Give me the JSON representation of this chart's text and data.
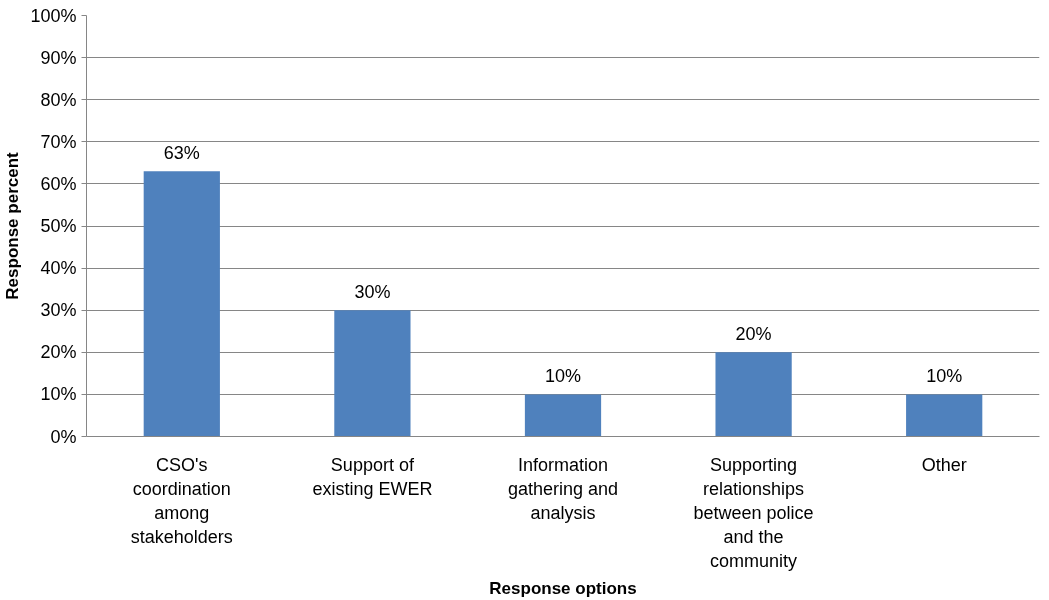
{
  "chart_data": {
    "type": "bar",
    "xlabel": "Response options",
    "ylabel": "Response percent",
    "categories": [
      "CSO's coordination among stakeholders",
      "Support of existing EWER",
      "Information gathering and analysis",
      "Supporting relationships between police and the community",
      "Other"
    ],
    "values": [
      63,
      30,
      10,
      20,
      10
    ],
    "value_labels": [
      "63%",
      "30%",
      "10%",
      "20%",
      "10%"
    ],
    "color": "#4f81bd",
    "ylim": [
      0,
      100
    ],
    "yticks": [
      {
        "value": 0,
        "label": "0%"
      },
      {
        "value": 10,
        "label": "10%"
      },
      {
        "value": 20,
        "label": "20%"
      },
      {
        "value": 30,
        "label": "30%"
      },
      {
        "value": 40,
        "label": "40%"
      },
      {
        "value": 50,
        "label": "50%"
      },
      {
        "value": 60,
        "label": "60%"
      },
      {
        "value": 70,
        "label": "70%"
      },
      {
        "value": 80,
        "label": "80%"
      },
      {
        "value": 90,
        "label": "90%"
      },
      {
        "value": 100,
        "label": "100%"
      }
    ],
    "grid": "y"
  }
}
